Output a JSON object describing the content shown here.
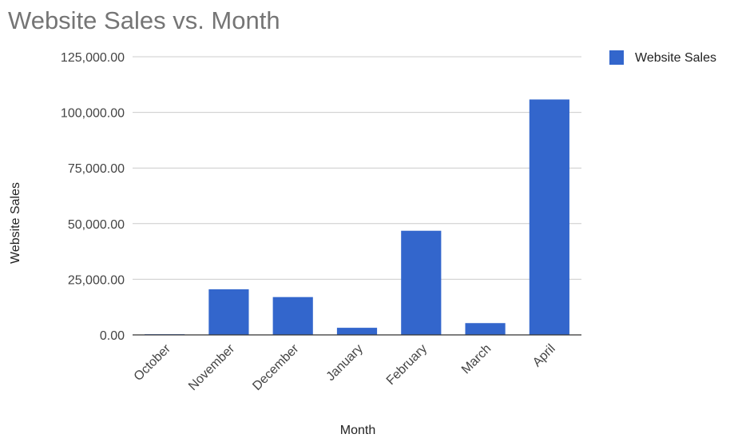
{
  "chart_data": {
    "type": "bar",
    "title": "Website Sales vs. Month",
    "xlabel": "Month",
    "ylabel": "Website Sales",
    "categories": [
      "October",
      "November",
      "December",
      "January",
      "February",
      "March",
      "April"
    ],
    "series": [
      {
        "name": "Website Sales",
        "color": "#3366cc",
        "values": [
          300,
          20500,
          17000,
          3200,
          46800,
          5300,
          105800
        ]
      }
    ],
    "ylim": [
      0,
      125000
    ],
    "yticks": [
      0,
      25000,
      50000,
      75000,
      100000,
      125000
    ],
    "ytick_labels": [
      "0.00",
      "25,000.00",
      "50,000.00",
      "75,000.00",
      "100,000.00",
      "125,000.00"
    ],
    "grid": true,
    "legend_position": "right"
  }
}
